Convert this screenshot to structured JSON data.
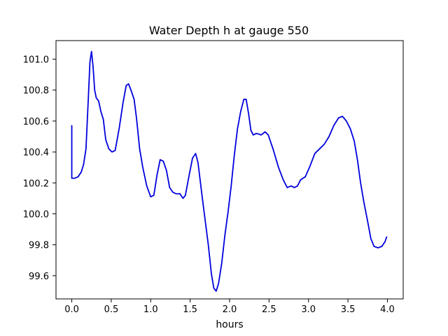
{
  "chart_data": {
    "type": "line",
    "title": "Water Depth h at gauge 550",
    "xlabel": "hours",
    "ylabel": "",
    "xlim": [
      -0.2,
      4.2
    ],
    "ylim": [
      99.45,
      101.12
    ],
    "x_ticks": [
      0.0,
      0.5,
      1.0,
      1.5,
      2.0,
      2.5,
      3.0,
      3.5,
      4.0
    ],
    "x_tick_labels": [
      "0.0",
      "0.5",
      "1.0",
      "1.5",
      "2.0",
      "2.5",
      "3.0",
      "3.5",
      "4.0"
    ],
    "y_ticks": [
      99.6,
      99.8,
      100.0,
      100.2,
      100.4,
      100.6,
      100.8,
      101.0
    ],
    "y_tick_labels": [
      "99.6",
      "99.8",
      "100.0",
      "100.2",
      "100.4",
      "100.6",
      "100.8",
      "101.0"
    ],
    "grid": false,
    "legend": "none",
    "series": [
      {
        "color": "#0000dd",
        "points": [
          [
            0.0,
            100.57
          ],
          [
            0.0,
            100.23
          ],
          [
            0.04,
            100.23
          ],
          [
            0.08,
            100.24
          ],
          [
            0.12,
            100.27
          ],
          [
            0.15,
            100.32
          ],
          [
            0.18,
            100.42
          ],
          [
            0.21,
            100.75
          ],
          [
            0.23,
            100.98
          ],
          [
            0.25,
            101.05
          ],
          [
            0.27,
            100.95
          ],
          [
            0.29,
            100.8
          ],
          [
            0.31,
            100.75
          ],
          [
            0.34,
            100.73
          ],
          [
            0.37,
            100.66
          ],
          [
            0.4,
            100.61
          ],
          [
            0.43,
            100.48
          ],
          [
            0.47,
            100.42
          ],
          [
            0.51,
            100.4
          ],
          [
            0.55,
            100.41
          ],
          [
            0.6,
            100.55
          ],
          [
            0.65,
            100.72
          ],
          [
            0.69,
            100.83
          ],
          [
            0.72,
            100.84
          ],
          [
            0.75,
            100.8
          ],
          [
            0.79,
            100.74
          ],
          [
            0.82,
            100.62
          ],
          [
            0.86,
            100.42
          ],
          [
            0.9,
            100.3
          ],
          [
            0.95,
            100.18
          ],
          [
            1.0,
            100.11
          ],
          [
            1.04,
            100.12
          ],
          [
            1.08,
            100.25
          ],
          [
            1.12,
            100.35
          ],
          [
            1.16,
            100.34
          ],
          [
            1.2,
            100.28
          ],
          [
            1.24,
            100.17
          ],
          [
            1.28,
            100.14
          ],
          [
            1.32,
            100.13
          ],
          [
            1.37,
            100.13
          ],
          [
            1.41,
            100.1
          ],
          [
            1.44,
            100.12
          ],
          [
            1.48,
            100.23
          ],
          [
            1.53,
            100.36
          ],
          [
            1.57,
            100.39
          ],
          [
            1.6,
            100.33
          ],
          [
            1.65,
            100.12
          ],
          [
            1.69,
            99.96
          ],
          [
            1.73,
            99.8
          ],
          [
            1.77,
            99.61
          ],
          [
            1.8,
            99.52
          ],
          [
            1.83,
            99.5
          ],
          [
            1.86,
            99.55
          ],
          [
            1.9,
            99.68
          ],
          [
            1.94,
            99.86
          ],
          [
            1.98,
            100.01
          ],
          [
            2.02,
            100.18
          ],
          [
            2.06,
            100.38
          ],
          [
            2.1,
            100.55
          ],
          [
            2.14,
            100.66
          ],
          [
            2.18,
            100.74
          ],
          [
            2.21,
            100.74
          ],
          [
            2.24,
            100.65
          ],
          [
            2.27,
            100.54
          ],
          [
            2.3,
            100.51
          ],
          [
            2.34,
            100.52
          ],
          [
            2.4,
            100.51
          ],
          [
            2.45,
            100.53
          ],
          [
            2.49,
            100.51
          ],
          [
            2.55,
            100.42
          ],
          [
            2.62,
            100.3
          ],
          [
            2.68,
            100.22
          ],
          [
            2.73,
            100.17
          ],
          [
            2.78,
            100.18
          ],
          [
            2.82,
            100.17
          ],
          [
            2.86,
            100.18
          ],
          [
            2.9,
            100.22
          ],
          [
            2.96,
            100.24
          ],
          [
            3.02,
            100.31
          ],
          [
            3.08,
            100.39
          ],
          [
            3.14,
            100.42
          ],
          [
            3.2,
            100.45
          ],
          [
            3.26,
            100.5
          ],
          [
            3.32,
            100.57
          ],
          [
            3.38,
            100.62
          ],
          [
            3.43,
            100.63
          ],
          [
            3.48,
            100.6
          ],
          [
            3.53,
            100.55
          ],
          [
            3.58,
            100.47
          ],
          [
            3.62,
            100.35
          ],
          [
            3.66,
            100.2
          ],
          [
            3.7,
            100.08
          ],
          [
            3.75,
            99.95
          ],
          [
            3.79,
            99.84
          ],
          [
            3.83,
            99.79
          ],
          [
            3.88,
            99.78
          ],
          [
            3.93,
            99.79
          ],
          [
            3.97,
            99.82
          ],
          [
            3.99,
            99.85
          ]
        ]
      }
    ]
  }
}
